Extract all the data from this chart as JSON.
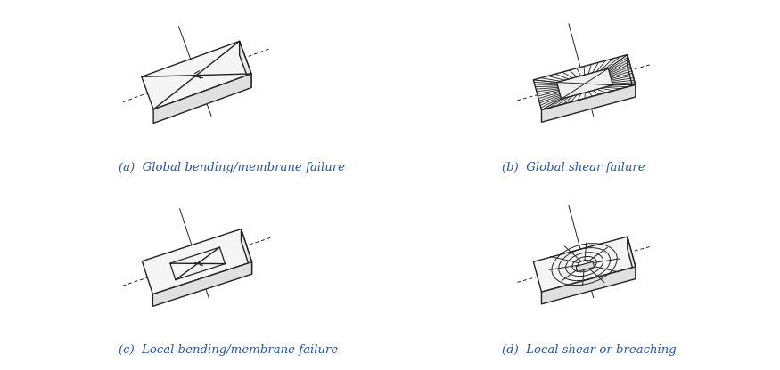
{
  "captions": [
    "(a)  Global bending/membrane failure",
    "(b)  Global shear failure",
    "(c)  Local bending/membrane failure",
    "(d)  Local shear or breaching"
  ],
  "caption_color": "#2255aa",
  "background_color": "#ffffff",
  "line_color": "#222222",
  "face_color_top": "#f5f5f5",
  "face_color_front": "#e0e0e0",
  "face_color_right": "#ebebeb",
  "figsize": [
    8.75,
    4.16
  ],
  "dpi": 100
}
